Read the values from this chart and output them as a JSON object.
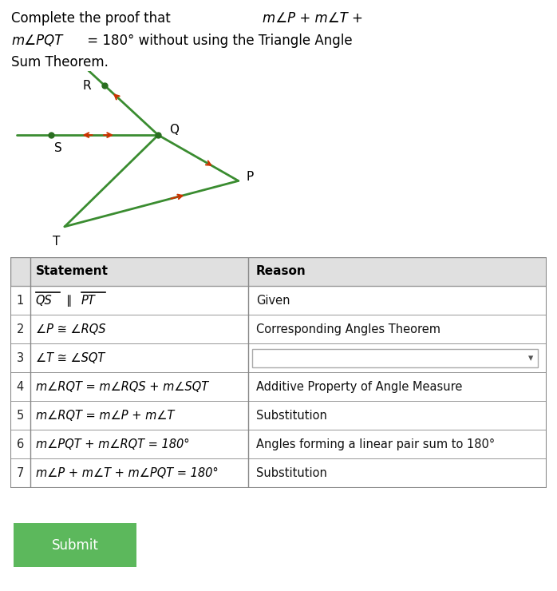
{
  "bg_color": "#ffffff",
  "title_line1": "Complete the proof that ",
  "title_math1": "m∠P + m∠T +",
  "title_line2": "m∠PQT",
  "title_line2b": " = 180° without using the Triangle Angle",
  "title_line3": "Sum Theorem.",
  "rows": [
    [
      "1",
      "QS ∥ PT̅̅",
      "Given"
    ],
    [
      "2",
      "∠P ≅ ∠RQS",
      "Corresponding Angles Theorem"
    ],
    [
      "3",
      "∠T ≅ ∠SQT",
      ""
    ],
    [
      "4",
      "m∠RQT = m∠RQS + m∠SQT",
      "Additive Property of Angle Measure"
    ],
    [
      "5",
      "m∠RQT = m∠P + m∠T",
      "Substitution"
    ],
    [
      "6",
      "m∠PQT + m∠RQT = 180°",
      "Angles forming a linear pair sum to 180°"
    ],
    [
      "7",
      "m∠P + m∠T + m∠PQT = 180°",
      "Substitution"
    ]
  ],
  "green_color": "#3a8c30",
  "red_color": "#cc3300",
  "submit_color": "#5cb85c",
  "submit_text": "Submit"
}
